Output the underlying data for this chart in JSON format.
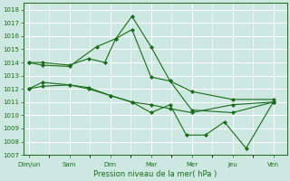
{
  "xlabel": "Pression niveau de la mer( hPa )",
  "bg_color": "#cce8e0",
  "grid_color": "#ffffff",
  "line_color": "#1a6b1a",
  "xlabels": [
    "Dim/un",
    "Sam",
    "Dim",
    "Mar",
    "Mer",
    "Jeu",
    "Ven"
  ],
  "xtick_pos": [
    0,
    1.5,
    3.0,
    4.5,
    6.0,
    7.5,
    9.0
  ],
  "ylim": [
    1007,
    1018.5
  ],
  "yticks": [
    1007,
    1008,
    1009,
    1010,
    1011,
    1012,
    1013,
    1014,
    1015,
    1016,
    1017,
    1018
  ],
  "series": [
    {
      "x": [
        0,
        0.5,
        1.5,
        2.5,
        3.2,
        3.8,
        4.5,
        5.2,
        6.0,
        7.5,
        9.0
      ],
      "y": [
        1014.0,
        1013.8,
        1013.7,
        1015.2,
        1015.8,
        1017.5,
        1015.2,
        1012.6,
        1011.8,
        1011.2,
        1011.2
      ]
    },
    {
      "x": [
        0,
        0.5,
        1.5,
        2.2,
        2.8,
        3.2,
        3.8,
        4.5,
        5.2,
        6.0,
        7.5,
        9.0
      ],
      "y": [
        1014.0,
        1014.0,
        1013.8,
        1014.3,
        1014.0,
        1015.8,
        1016.5,
        1012.9,
        1012.6,
        1010.4,
        1010.2,
        1011.0
      ]
    },
    {
      "x": [
        0,
        0.5,
        1.5,
        2.2,
        3.0,
        3.8,
        4.5,
        5.2,
        6.0,
        7.5,
        9.0
      ],
      "y": [
        1012.0,
        1012.5,
        1012.3,
        1012.1,
        1011.5,
        1011.0,
        1010.8,
        1010.5,
        1010.2,
        1010.8,
        1011.0
      ]
    },
    {
      "x": [
        0,
        0.5,
        1.5,
        2.2,
        3.0,
        3.8,
        4.5,
        5.2,
        5.8,
        6.5,
        7.2,
        8.0,
        9.0
      ],
      "y": [
        1012.0,
        1012.2,
        1012.3,
        1012.0,
        1011.5,
        1011.0,
        1010.2,
        1010.8,
        1008.5,
        1008.5,
        1009.5,
        1007.5,
        1011.0
      ]
    }
  ]
}
